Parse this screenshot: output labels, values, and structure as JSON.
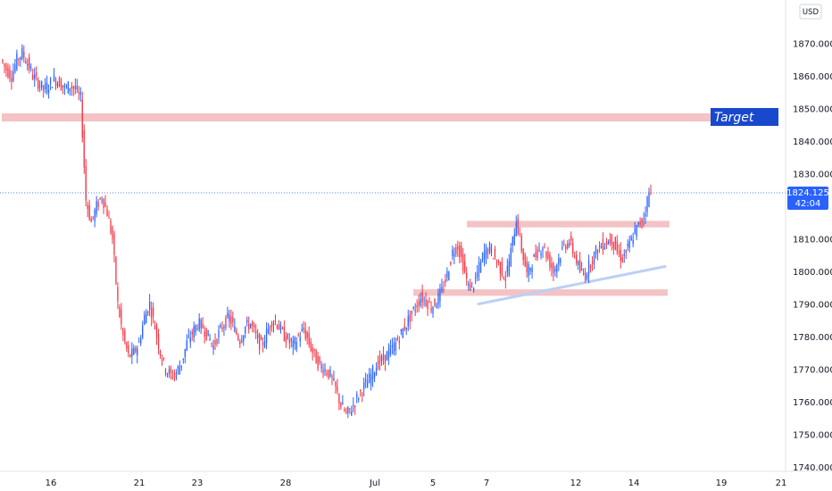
{
  "chart_data": {
    "type": "candlestick",
    "currency_label": "USD",
    "last_price_label": "1824.125",
    "countdown_label": "42:04",
    "last_price": 1824.125,
    "annotation_label": "Target",
    "ylim": [
      1740,
      1880
    ],
    "y_ticks": [
      {
        "value": 1870,
        "label": "1870.000"
      },
      {
        "value": 1860,
        "label": "1860.000"
      },
      {
        "value": 1850,
        "label": "1850.000"
      },
      {
        "value": 1840,
        "label": "1840.000"
      },
      {
        "value": 1830,
        "label": "1830.000"
      },
      {
        "value": 1810,
        "label": "1810.000"
      },
      {
        "value": 1800,
        "label": "1800.000"
      },
      {
        "value": 1790,
        "label": "1790.000"
      },
      {
        "value": 1780,
        "label": "1780.000"
      },
      {
        "value": 1770,
        "label": "1770.000"
      },
      {
        "value": 1760,
        "label": "1760.000"
      },
      {
        "value": 1750,
        "label": "1750.000"
      },
      {
        "value": 1740,
        "label": "1740.000"
      }
    ],
    "x_ticks": [
      {
        "label": "16"
      },
      {
        "label": "21"
      },
      {
        "label": "23"
      },
      {
        "label": "28"
      },
      {
        "label": "Jul"
      },
      {
        "label": "5"
      },
      {
        "label": "7"
      },
      {
        "label": "12"
      },
      {
        "label": "14"
      },
      {
        "label": "19"
      },
      {
        "label": "21"
      }
    ],
    "zones": [
      {
        "name": "target-zone",
        "y0": 1846,
        "y1": 1848.5
      },
      {
        "name": "upper-range-zone",
        "y0": 1813.5,
        "y1": 1815.5
      },
      {
        "name": "lower-range-zone",
        "y0": 1792.5,
        "y1": 1794.5
      }
    ],
    "trendline": {
      "from": 1790,
      "to": 1801.5
    },
    "series": [
      {
        "name": "",
        "close_path": [
          1865,
          1862,
          1860,
          1865,
          1867,
          1864,
          1860,
          1858,
          1856,
          1857,
          1859,
          1858,
          1856,
          1857,
          1856,
          1853,
          1822,
          1815,
          1820,
          1823,
          1818,
          1810,
          1790,
          1780,
          1774,
          1775,
          1778,
          1786,
          1790,
          1783,
          1775,
          1770,
          1768,
          1769,
          1772,
          1778,
          1781,
          1784,
          1783,
          1780,
          1777,
          1781,
          1784,
          1786,
          1782,
          1779,
          1783,
          1784,
          1780,
          1777,
          1781,
          1785,
          1784,
          1781,
          1779,
          1777,
          1780,
          1782,
          1778,
          1774,
          1771,
          1770,
          1768,
          1764,
          1759,
          1756,
          1758,
          1761,
          1764,
          1766,
          1769,
          1772,
          1773,
          1775,
          1777,
          1780,
          1783,
          1786,
          1789,
          1792,
          1791,
          1789,
          1791,
          1794,
          1799,
          1806,
          1808,
          1802,
          1795,
          1796,
          1801,
          1806,
          1807,
          1804,
          1801,
          1798,
          1806,
          1816,
          1807,
          1799,
          1803,
          1806,
          1808,
          1804,
          1800,
          1804,
          1808,
          1809,
          1805,
          1800,
          1799,
          1803,
          1806,
          1808,
          1809,
          1810,
          1806,
          1804,
          1807,
          1811,
          1814,
          1817,
          1824
        ]
      },
      {
        "name": "",
        "bullish_color": "#2962ff",
        "bearish_color": "#f23645"
      }
    ]
  }
}
